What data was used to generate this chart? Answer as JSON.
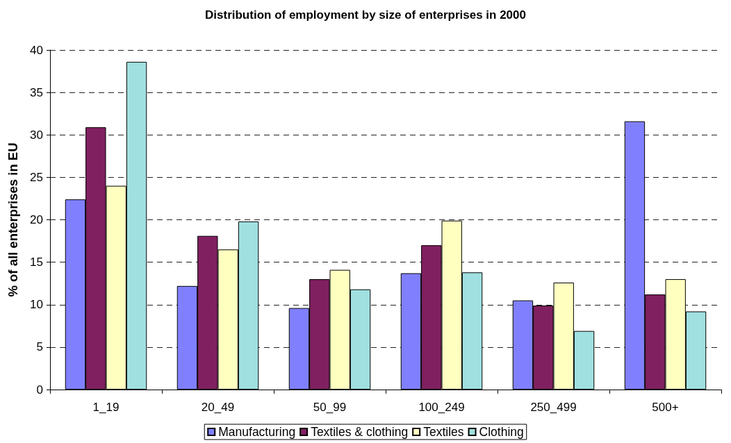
{
  "chart_data": {
    "type": "bar",
    "title": "Distribution of employment by size of enterprises in 2000",
    "ylabel": "% of all enterprises in EU",
    "categories": [
      "1_19",
      "20_49",
      "50_99",
      "100_249",
      "250_499",
      "500+"
    ],
    "series": [
      {
        "name": "Manufacturing",
        "color": "#8080ff",
        "values": [
          22.4,
          12.2,
          9.6,
          13.7,
          10.5,
          31.6
        ]
      },
      {
        "name": "Textiles & clothing",
        "color": "#802060",
        "values": [
          30.9,
          18.1,
          13.0,
          17.0,
          9.9,
          11.2
        ]
      },
      {
        "name": "Textiles",
        "color": "#ffffc0",
        "values": [
          24.0,
          16.5,
          14.1,
          19.9,
          12.6,
          13.0
        ]
      },
      {
        "name": "Clothing",
        "color": "#a0e0e0",
        "values": [
          38.6,
          19.8,
          11.8,
          13.8,
          6.9,
          9.2
        ]
      }
    ],
    "ylim": [
      0,
      40
    ],
    "yticks": [
      0,
      5,
      10,
      15,
      20,
      25,
      30,
      35,
      40
    ],
    "grid": "y",
    "legend": "bottom"
  }
}
